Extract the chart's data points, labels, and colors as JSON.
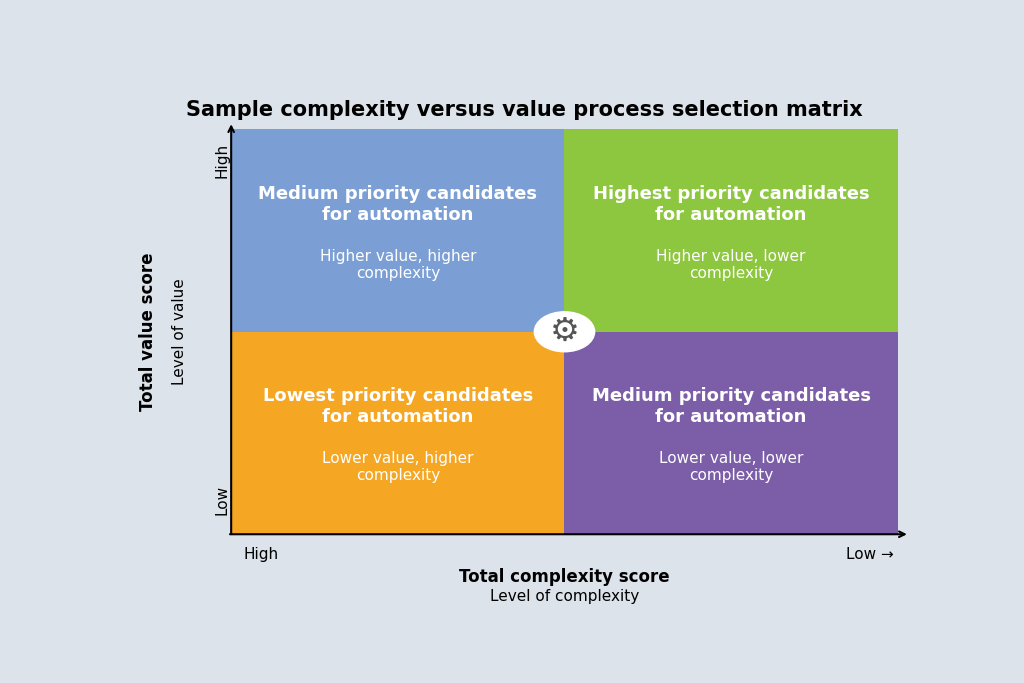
{
  "title": "Sample complexity versus value process selection matrix",
  "title_fontsize": 15,
  "background_color": "#dde3ea",
  "ylabel_main": "Total value score",
  "ylabel_sub": "Level of value",
  "xlabel_main": "Total complexity score",
  "xlabel_sub": "Level of complexity",
  "ytick_high": "High",
  "ytick_low": "Low",
  "xtick_high": "High",
  "xtick_low": "Low →",
  "label_fontsize": 13,
  "sublabel_fontsize": 11,
  "axis_label_fontsize": 12,
  "tick_label_fontsize": 11,
  "gear_symbol": "⚙",
  "gear_fontsize": 24,
  "ml": 0.13,
  "mr": 0.97,
  "mb": 0.14,
  "mt": 0.91,
  "quad_coords": [
    {
      "color": "#7b9fd4",
      "label": "Medium priority candidates\nfor automation",
      "sublabel": "Higher value, higher\ncomplexity",
      "pos": "top-left"
    },
    {
      "color": "#8dc63f",
      "label": "Highest priority candidates\nfor automation",
      "sublabel": "Higher value, lower\ncomplexity",
      "pos": "top-right"
    },
    {
      "color": "#f5a623",
      "label": "Lowest priority candidates\nfor automation",
      "sublabel": "Lower value, higher\ncomplexity",
      "pos": "bottom-left"
    },
    {
      "color": "#7b5ea7",
      "label": "Medium priority candidates\nfor automation",
      "sublabel": "Lower value, lower\ncomplexity",
      "pos": "bottom-right"
    }
  ]
}
